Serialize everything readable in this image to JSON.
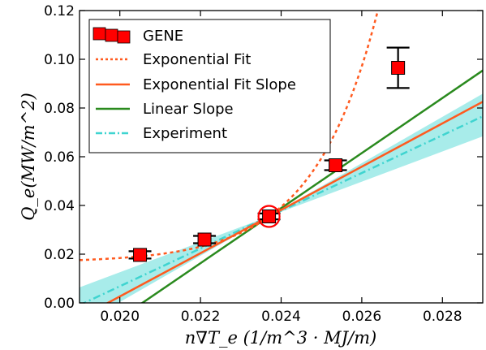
{
  "chart_data": {
    "type": "line",
    "xlabel": "n∇T_e (1/m^3 · MJ/m)",
    "ylabel": "Q_e(MW/m^2)",
    "xlim": [
      0.019,
      0.029
    ],
    "ylim": [
      0.0,
      0.12
    ],
    "x_ticks": [
      0.02,
      0.022,
      0.024,
      0.026,
      0.028
    ],
    "x_tick_labels": [
      "0.020",
      "0.022",
      "0.024",
      "0.026",
      "0.028"
    ],
    "y_ticks": [
      0.0,
      0.02,
      0.04,
      0.06,
      0.08,
      0.1,
      0.12
    ],
    "y_tick_labels": [
      "0.00",
      "0.02",
      "0.04",
      "0.06",
      "0.08",
      "0.10",
      "0.12"
    ],
    "grid": false,
    "legend_position": "top-left",
    "series": [
      {
        "name": "GENE",
        "kind": "errorbar",
        "color": "#ff0000",
        "x": [
          0.0205,
          0.0221,
          0.0237,
          0.02535,
          0.0269
        ],
        "y": [
          0.0197,
          0.026,
          0.0355,
          0.0565,
          0.0965
        ],
        "yerr": [
          0.0015,
          0.0015,
          0.0012,
          0.002,
          0.0083
        ]
      },
      {
        "name": "Exponential Fit",
        "kind": "dotted-curve",
        "color": "#ff5a1f",
        "base": 0.0166,
        "amplitude": 0.0189,
        "x0": 0.0237,
        "rate": 630
      },
      {
        "name": "Exponential Fit Slope",
        "kind": "line",
        "color": "#ff5a1f",
        "x0": 0.0237,
        "y0": 0.0355,
        "slope": 8.88
      },
      {
        "name": "Linear Slope",
        "kind": "line",
        "color": "#2a8a1e",
        "x0": 0.0237,
        "y0": 0.0355,
        "slope": 11.3
      },
      {
        "name": "Experiment",
        "kind": "dashdot-line-with-band",
        "color": "#3fd4d0",
        "band_color": "#3fd4d0",
        "x0": 0.0237,
        "y0": 0.0355,
        "slope": 7.75,
        "slope_low": 6.2,
        "slope_high": 9.5
      }
    ],
    "annotations": [
      {
        "kind": "circle-marker",
        "color": "#ff0000",
        "x": 0.0237,
        "y": 0.0355
      }
    ]
  }
}
